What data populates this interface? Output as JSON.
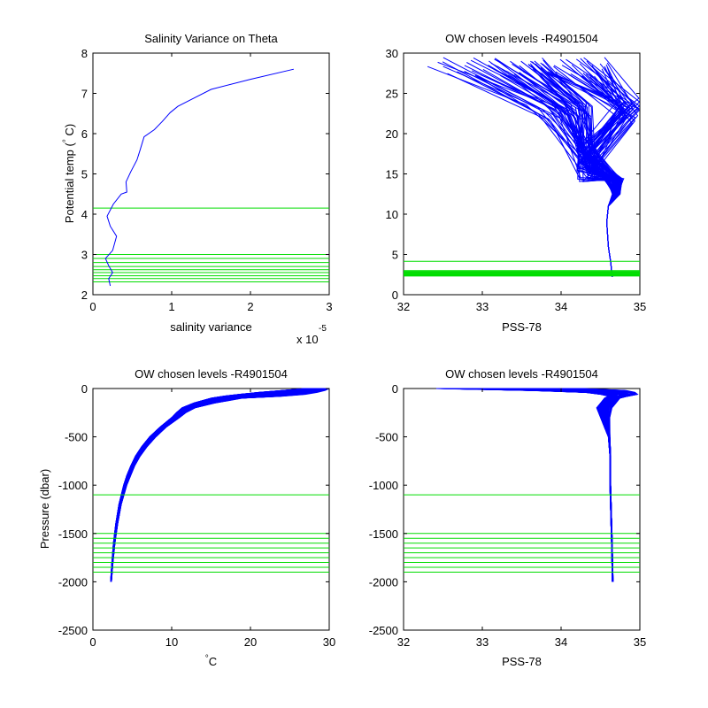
{
  "colors": {
    "profile": "#0000ff",
    "levels": "#00dd00",
    "axis": "#000000"
  },
  "chart_data": [
    {
      "id": "p1",
      "type": "line",
      "title": "Salinity Variance on Theta",
      "xlabel": "salinity variance",
      "ylabel": "Potential temp (°C)",
      "ylabel_main": "Potential temp (",
      "ylabel_deg": "°",
      "ylabel_tail": " C)",
      "x_exponent_text": "x 10",
      "x_exponent_power": "-5",
      "xlim": [
        0,
        3
      ],
      "ylim": [
        2,
        8
      ],
      "xticks": [
        0,
        1,
        2,
        3
      ],
      "yticks": [
        2,
        3,
        4,
        5,
        6,
        7,
        8
      ],
      "xticklabels": [
        "0",
        "1",
        "2",
        "3"
      ],
      "yticklabels": [
        "2",
        "3",
        "4",
        "5",
        "6",
        "7",
        "8"
      ],
      "grid": false,
      "levels_axis": "y",
      "chosen_levels": [
        4.15,
        3.0,
        2.9,
        2.8,
        2.7,
        2.62,
        2.55,
        2.47,
        2.4,
        2.32
      ],
      "series": [
        {
          "x": [
            0.22,
            0.2,
            0.25,
            0.2,
            0.16,
            0.25,
            0.3,
            0.22,
            0.18,
            0.26,
            0.36,
            0.43,
            0.42,
            0.48,
            0.56,
            0.6,
            0.65,
            0.78,
            0.88,
            0.98,
            1.08,
            1.25,
            1.5,
            2.0,
            2.55
          ],
          "y": [
            2.22,
            2.4,
            2.55,
            2.72,
            2.9,
            3.1,
            3.45,
            3.7,
            3.95,
            4.25,
            4.5,
            4.55,
            4.8,
            5.05,
            5.35,
            5.6,
            5.92,
            6.1,
            6.3,
            6.52,
            6.68,
            6.85,
            7.1,
            7.35,
            7.6
          ]
        }
      ]
    },
    {
      "id": "p2",
      "type": "line",
      "title": "OW chosen levels -R4901504",
      "xlabel": "PSS-78",
      "ylabel": "",
      "xlim": [
        32,
        35
      ],
      "ylim": [
        0,
        30
      ],
      "xticks": [
        32,
        33,
        34,
        35
      ],
      "yticks": [
        0,
        5,
        10,
        15,
        20,
        25,
        30
      ],
      "xticklabels": [
        "32",
        "33",
        "34",
        "35"
      ],
      "yticklabels": [
        "0",
        "5",
        "10",
        "15",
        "20",
        "25",
        "30"
      ],
      "grid": false,
      "levels_axis": "y",
      "chosen_levels": [
        4.15,
        3.0,
        2.9,
        2.8,
        2.7,
        2.62,
        2.55,
        2.47,
        2.4,
        2.32
      ],
      "profile_family": {
        "count": 95,
        "surface_theta": [
          27.0,
          29.5
        ],
        "surface_salinity": [
          32.2,
          34.6
        ],
        "knee_salinity": [
          34.2,
          34.45
        ],
        "knee_theta": [
          14.0,
          18.5
        ],
        "warm_bulge_salinity": [
          34.7,
          35.0
        ],
        "deep_end_salinity": 34.65,
        "deep_end_theta": 2.2
      }
    },
    {
      "id": "p3",
      "type": "line",
      "title": "OW chosen levels -R4901504",
      "xlabel": "°C",
      "xlabel_deg": "°",
      "xlabel_main": "C",
      "ylabel": "Pressure (dbar)",
      "xlim": [
        0,
        30
      ],
      "ylim": [
        -2500,
        0
      ],
      "xticks": [
        0,
        10,
        20,
        30
      ],
      "yticks": [
        -2500,
        -2000,
        -1500,
        -1000,
        -500,
        0
      ],
      "xticklabels": [
        "0",
        "10",
        "20",
        "30"
      ],
      "yticklabels": [
        "-2500",
        "-2000",
        "-1500",
        "-1000",
        "-500",
        "0"
      ],
      "grid": false,
      "levels_axis": "y",
      "chosen_levels": [
        -1100,
        -1500,
        -1550,
        -1600,
        -1650,
        -1700,
        -1750,
        -1800,
        -1850,
        -1900
      ],
      "profile_family": {
        "count": 95,
        "pressure": [
          0,
          -20,
          -40,
          -60,
          -80,
          -100,
          -150,
          -200,
          -250,
          -300,
          -400,
          -500,
          -600,
          -700,
          -800,
          -900,
          -1000,
          -1200,
          -1400,
          -1600,
          -1800,
          -2000
        ],
        "temp_low": [
          27.0,
          24.0,
          21.0,
          18.5,
          16.5,
          15.0,
          12.8,
          11.3,
          10.6,
          10.0,
          8.5,
          7.2,
          6.2,
          5.4,
          4.8,
          4.3,
          3.9,
          3.3,
          2.9,
          2.6,
          2.4,
          2.25
        ],
        "temp_high": [
          30.0,
          29.5,
          28.5,
          27.0,
          24.0,
          19.0,
          15.5,
          13.0,
          11.8,
          11.0,
          9.3,
          8.0,
          6.9,
          6.0,
          5.3,
          4.8,
          4.3,
          3.6,
          3.15,
          2.8,
          2.55,
          2.35
        ]
      }
    },
    {
      "id": "p4",
      "type": "line",
      "title": "OW chosen levels -R4901504",
      "xlabel": "PSS-78",
      "ylabel": "",
      "xlim": [
        32,
        35
      ],
      "ylim": [
        -2500,
        0
      ],
      "xticks": [
        32,
        33,
        34,
        35
      ],
      "yticks": [
        -2500,
        -2000,
        -1500,
        -1000,
        -500,
        0
      ],
      "xticklabels": [
        "32",
        "33",
        "34",
        "35"
      ],
      "yticklabels": [
        "-2500",
        "-2000",
        "-1500",
        "-1000",
        "-500",
        "0"
      ],
      "grid": false,
      "levels_axis": "y",
      "chosen_levels": [
        -1100,
        -1500,
        -1550,
        -1600,
        -1650,
        -1700,
        -1750,
        -1800,
        -1850,
        -1900
      ],
      "profile_family": {
        "count": 95,
        "pressure": [
          0,
          -20,
          -40,
          -60,
          -80,
          -100,
          -150,
          -200,
          -300,
          -400,
          -500,
          -700,
          -1000,
          -1300,
          -1600,
          -2000
        ],
        "sal_low": [
          32.4,
          33.6,
          34.3,
          34.5,
          34.6,
          34.55,
          34.5,
          34.45,
          34.5,
          34.55,
          34.6,
          34.62,
          34.62,
          34.63,
          34.64,
          34.65
        ],
        "sal_high": [
          34.3,
          34.85,
          34.95,
          34.98,
          34.85,
          34.75,
          34.7,
          34.65,
          34.62,
          34.62,
          34.62,
          34.63,
          34.63,
          34.64,
          34.65,
          34.66
        ]
      }
    }
  ]
}
